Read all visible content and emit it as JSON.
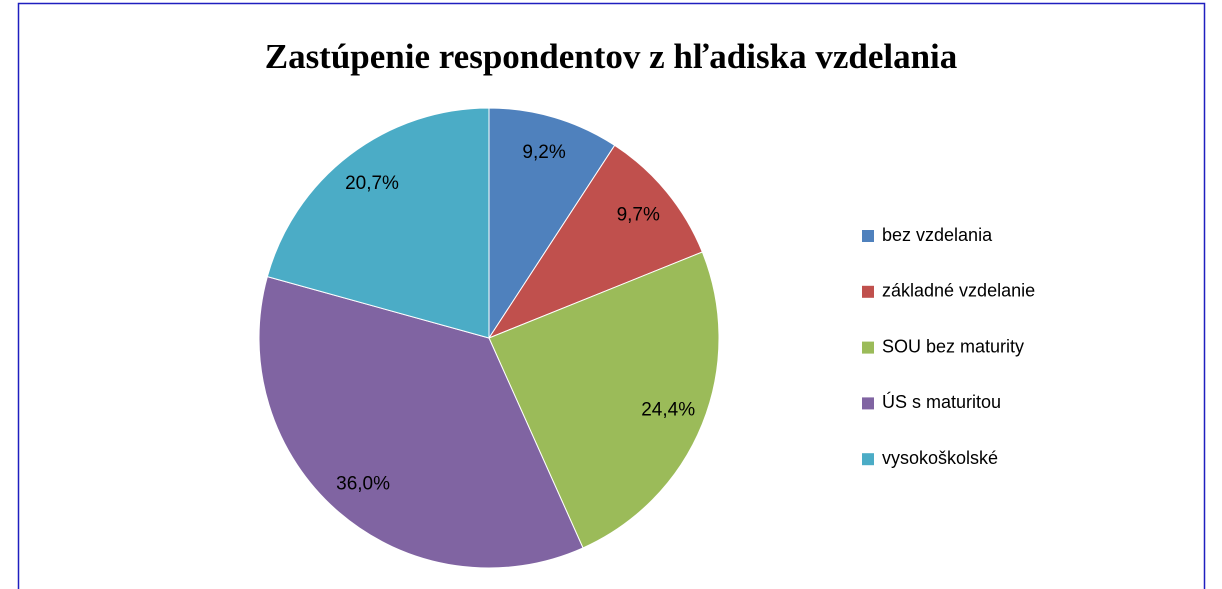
{
  "chart_data": {
    "type": "pie",
    "title": "Zastúpenie respondentov z hľadiska vzdelania",
    "categories": [
      "bez vzdelania",
      "základné vzdelanie",
      "SOU bez maturity",
      "ÚS s maturitou",
      "vysokoškolské"
    ],
    "values": [
      9.2,
      9.7,
      24.4,
      36.0,
      20.7
    ],
    "value_labels": [
      "9,2%",
      "9,7%",
      "24,4%",
      "36,0%",
      "20,7%"
    ],
    "colors": [
      "#4f81bd",
      "#c0504d",
      "#9bbb59",
      "#8064a2",
      "#4bacc6"
    ],
    "legend": "right"
  }
}
